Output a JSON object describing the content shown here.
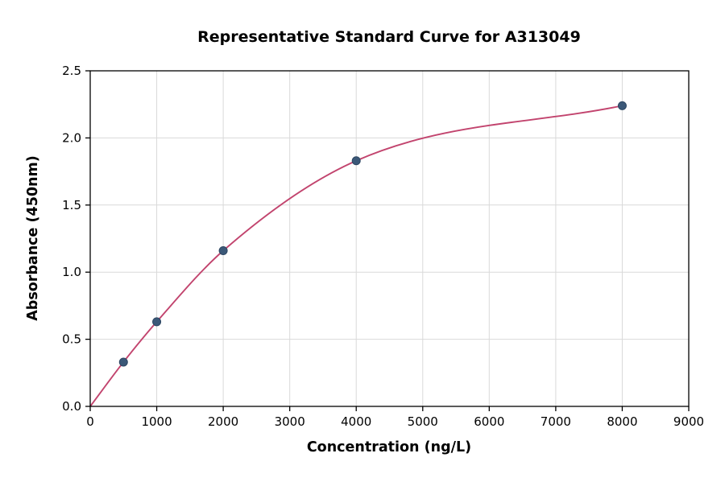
{
  "chart_data": {
    "type": "scatter",
    "title": "Representative Standard Curve for A313049",
    "xlabel": "Concentration (ng/L)",
    "ylabel": "Absorbance (450nm)",
    "xlim": [
      0,
      9000
    ],
    "ylim": [
      0,
      2.5
    ],
    "x_ticks": [
      0,
      1000,
      2000,
      3000,
      4000,
      5000,
      6000,
      7000,
      8000,
      9000
    ],
    "x_tick_labels": [
      "0",
      "1000",
      "2000",
      "3000",
      "4000",
      "5000",
      "6000",
      "7000",
      "8000",
      "9000"
    ],
    "y_ticks": [
      0.0,
      0.5,
      1.0,
      1.5,
      2.0,
      2.5
    ],
    "y_tick_labels": [
      "0.0",
      "0.5",
      "1.0",
      "1.5",
      "2.0",
      "2.5"
    ],
    "grid": true,
    "legend": "none",
    "points": {
      "x": [
        500,
        1000,
        2000,
        4000,
        8000
      ],
      "y": [
        0.33,
        0.63,
        1.16,
        1.83,
        2.24
      ]
    },
    "curve": {
      "x": [
        0,
        500,
        1000,
        2000,
        4000,
        8000
      ],
      "y": [
        0.0,
        0.33,
        0.63,
        1.16,
        1.83,
        2.24
      ]
    },
    "colors": {
      "point_fill": "#3b5878",
      "point_edge": "#2e4763",
      "curve": "#c2446e",
      "grid": "#d9d9d9",
      "axis": "#000000",
      "background": "#ffffff"
    }
  }
}
